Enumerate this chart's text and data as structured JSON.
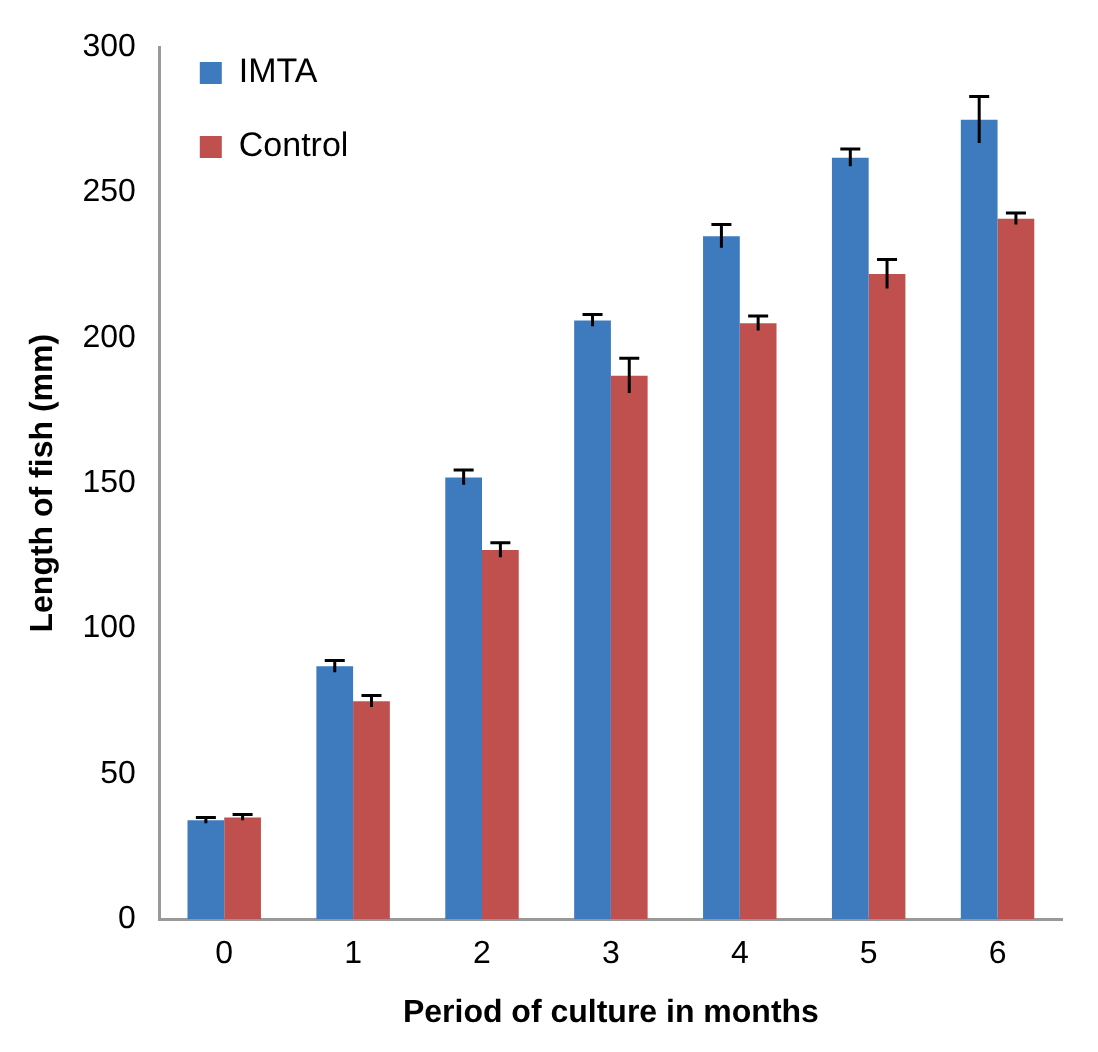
{
  "chart_data": {
    "type": "bar",
    "xlabel": "Period of culture in months",
    "ylabel": "Length of fish (mm)",
    "categories": [
      "0",
      "1",
      "2",
      "3",
      "4",
      "5",
      "6"
    ],
    "series": [
      {
        "name": "IMTA",
        "color": "#3d7abe",
        "values": [
          34,
          87,
          152,
          206,
          235,
          262,
          275
        ],
        "errors": [
          1,
          2,
          2.5,
          2,
          4,
          3,
          8
        ]
      },
      {
        "name": "Control",
        "color": "#c0504d",
        "values": [
          35,
          75,
          127,
          187,
          205,
          222,
          241
        ],
        "errors": [
          1,
          2,
          2.5,
          6,
          2.5,
          5,
          2
        ]
      }
    ],
    "ylim": [
      0,
      300
    ],
    "yticks": [
      0,
      50,
      100,
      150,
      200,
      250,
      300
    ],
    "grid": false,
    "legend": "top left"
  }
}
